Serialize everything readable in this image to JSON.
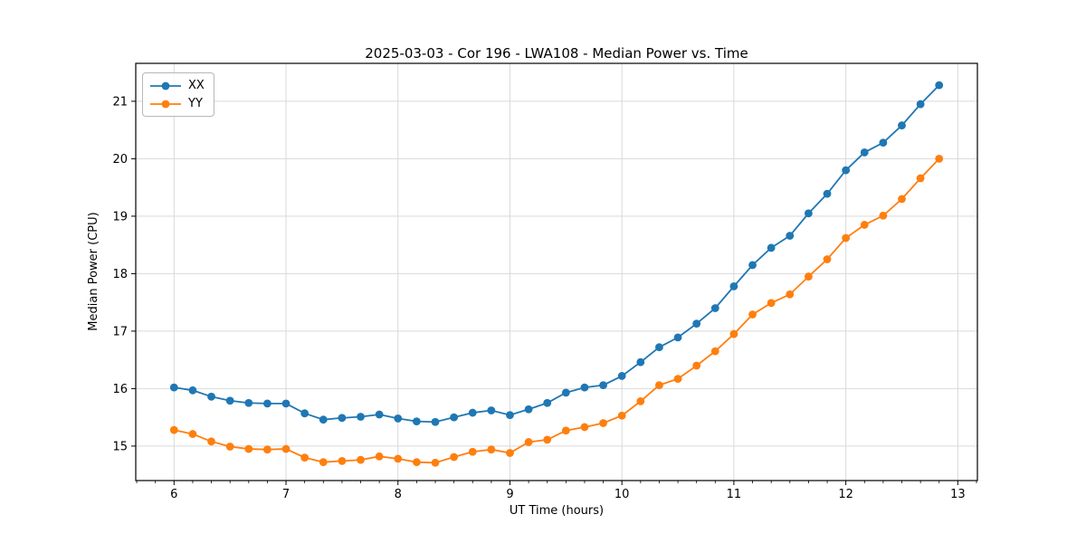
{
  "title": "2025-03-03 - Cor 196 - LWA108 - Median Power vs. Time",
  "colors": {
    "series_xx": "#1f77b4",
    "series_yy": "#ff7f0e",
    "grid": "#d9d9d9",
    "spine": "#000000",
    "text": "#000000",
    "legend_border": "#b7b7b7",
    "background": "#ffffff"
  },
  "chart_data": {
    "type": "line",
    "title": "2025-03-03 - Cor 196 - LWA108 - Median Power vs. Time",
    "xlabel": "UT Time (hours)",
    "ylabel": "Median Power (CPU)",
    "xlim": [
      5.658,
      13.175
    ],
    "ylim": [
      14.4,
      21.66
    ],
    "x_ticks": [
      6,
      7,
      8,
      9,
      10,
      11,
      12,
      13
    ],
    "y_ticks": [
      15,
      16,
      17,
      18,
      19,
      20,
      21
    ],
    "x_minor_step": 0.16667,
    "grid": "major-both",
    "legend_position": "upper-left",
    "marker": "circle",
    "x": [
      6.0,
      6.1667,
      6.3333,
      6.5,
      6.6667,
      6.8333,
      7.0,
      7.1667,
      7.3333,
      7.5,
      7.6667,
      7.8333,
      8.0,
      8.1667,
      8.3333,
      8.5,
      8.6667,
      8.8333,
      9.0,
      9.1667,
      9.3333,
      9.5,
      9.6667,
      9.8333,
      10.0,
      10.1667,
      10.3333,
      10.5,
      10.6667,
      10.8333,
      11.0,
      11.1667,
      11.3333,
      11.5,
      11.6667,
      11.8333,
      12.0,
      12.1667,
      12.3333,
      12.5,
      12.6667,
      12.8333
    ],
    "series": [
      {
        "name": "XX",
        "color": "#1f77b4",
        "values": [
          16.02,
          15.97,
          15.86,
          15.79,
          15.75,
          15.74,
          15.74,
          15.57,
          15.46,
          15.49,
          15.51,
          15.55,
          15.48,
          15.43,
          15.42,
          15.5,
          15.58,
          15.62,
          15.54,
          15.64,
          15.75,
          15.93,
          16.02,
          16.06,
          16.22,
          16.46,
          16.72,
          16.89,
          17.13,
          17.4,
          17.78,
          18.15,
          18.45,
          18.66,
          19.05,
          19.39,
          19.8,
          20.11,
          20.28,
          20.58,
          20.95,
          21.28
        ]
      },
      {
        "name": "YY",
        "color": "#ff7f0e",
        "values": [
          15.28,
          15.21,
          15.08,
          14.99,
          14.95,
          14.94,
          14.95,
          14.8,
          14.72,
          14.74,
          14.76,
          14.82,
          14.78,
          14.72,
          14.71,
          14.81,
          14.9,
          14.94,
          14.88,
          15.07,
          15.11,
          15.27,
          15.33,
          15.4,
          15.53,
          15.78,
          16.06,
          16.17,
          16.4,
          16.65,
          16.95,
          17.29,
          17.49,
          17.64,
          17.95,
          18.25,
          18.62,
          18.85,
          19.01,
          19.3,
          19.66,
          20.0
        ]
      }
    ]
  }
}
